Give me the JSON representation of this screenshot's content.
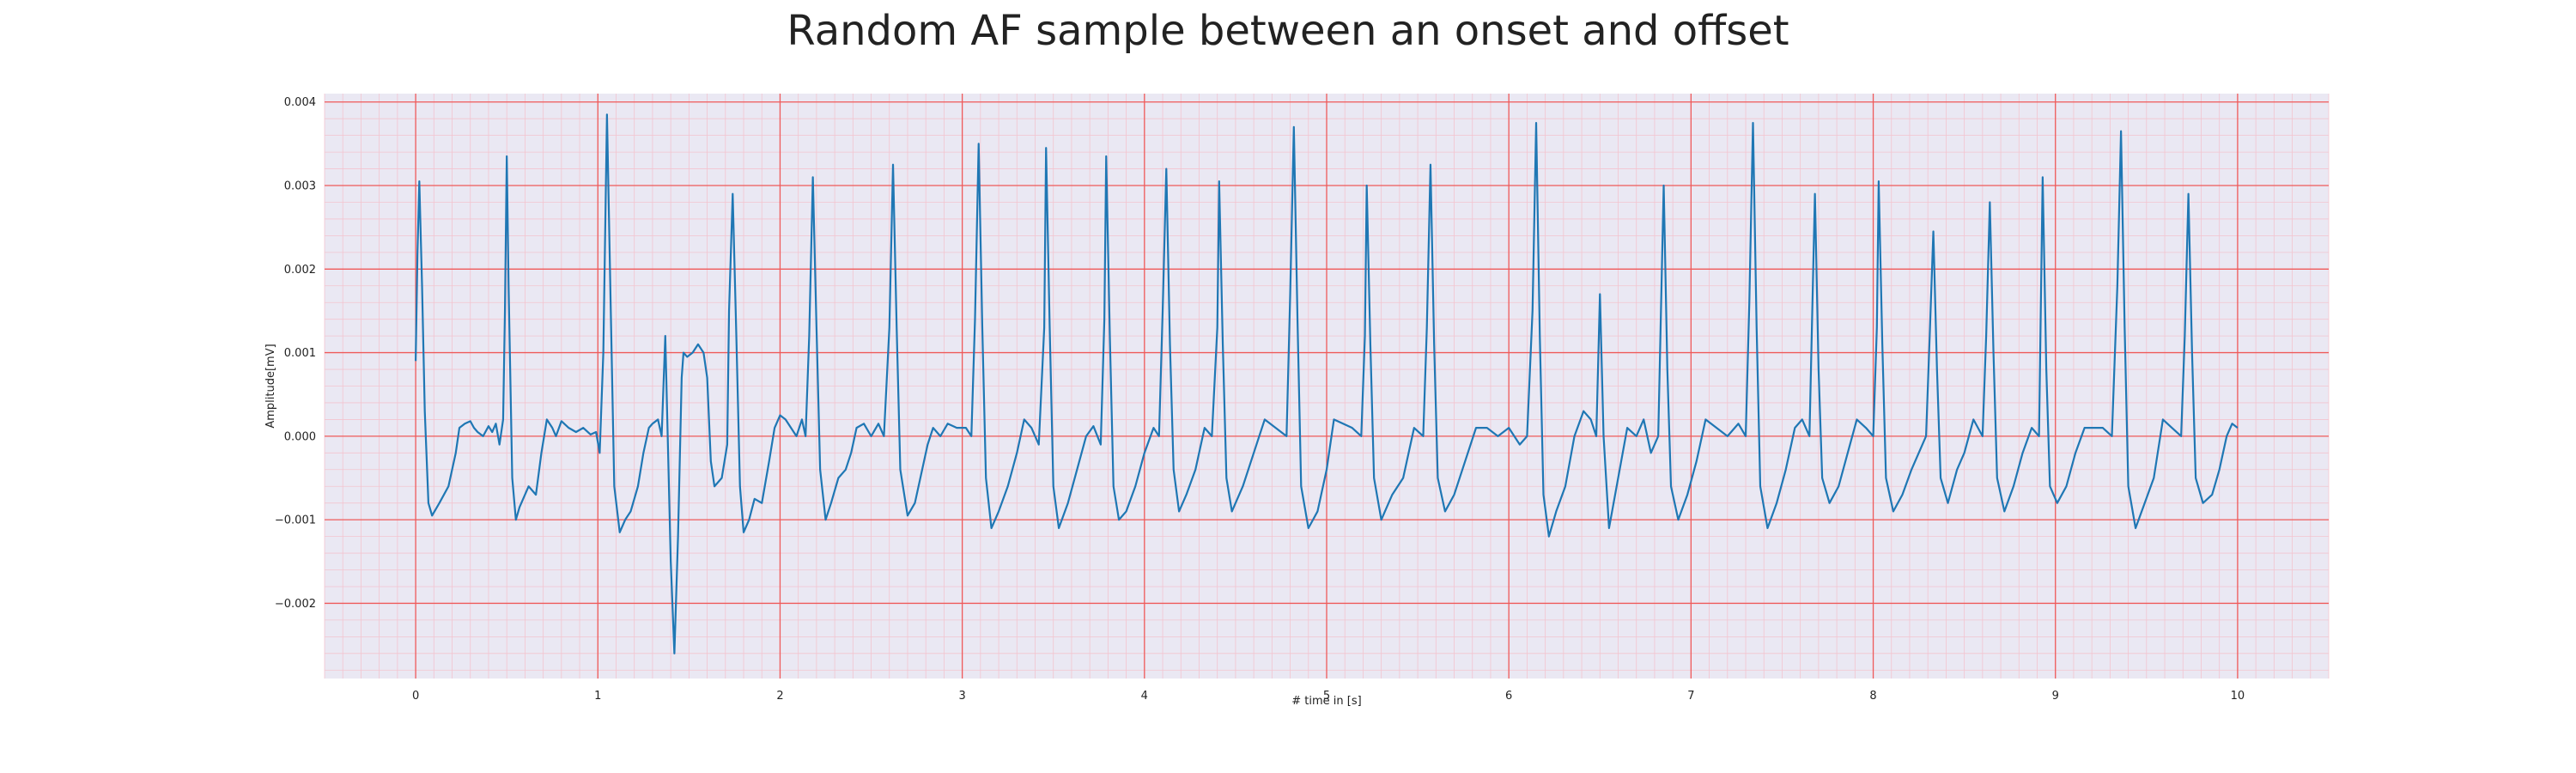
{
  "chart_data": {
    "type": "line",
    "title": "Random AF sample between an onset and offset",
    "xlabel": "# time in [s]",
    "ylabel": "Amplitude[mV]",
    "xlim": [
      -0.5,
      10.5
    ],
    "ylim": [
      -0.0029,
      0.0041
    ],
    "x_ticks": [
      0,
      1,
      2,
      3,
      4,
      5,
      6,
      7,
      8,
      9,
      10
    ],
    "x_tick_labels": [
      "0",
      "1",
      "2",
      "3",
      "4",
      "5",
      "6",
      "7",
      "8",
      "9",
      "10"
    ],
    "y_ticks": [
      -0.002,
      -0.001,
      0.0,
      0.001,
      0.002,
      0.003,
      0.004
    ],
    "y_tick_labels": [
      "−0.002",
      "−0.001",
      "0.000",
      "0.001",
      "0.002",
      "0.003",
      "0.004"
    ],
    "grid": true,
    "minor_grid": true,
    "background_color": "#eae8f3",
    "major_grid_color": "#ef5a5a",
    "minor_grid_color": "#f3c4cf",
    "series": [
      {
        "color": "#1f77b4",
        "points": [
          [
            0.0,
            0.0009
          ],
          [
            0.01,
            0.0022
          ],
          [
            0.02,
            0.00305
          ],
          [
            0.035,
            0.0018
          ],
          [
            0.05,
            0.0003
          ],
          [
            0.07,
            -0.0008
          ],
          [
            0.09,
            -0.00095
          ],
          [
            0.13,
            -0.0008
          ],
          [
            0.18,
            -0.0006
          ],
          [
            0.2,
            -0.0004
          ],
          [
            0.22,
            -0.0002
          ],
          [
            0.24,
            0.0001
          ],
          [
            0.27,
            0.00015
          ],
          [
            0.3,
            0.00018
          ],
          [
            0.32,
            0.0001
          ],
          [
            0.34,
            5e-05
          ],
          [
            0.37,
            0.0
          ],
          [
            0.4,
            0.00012
          ],
          [
            0.42,
            5e-05
          ],
          [
            0.44,
            0.00015
          ],
          [
            0.46,
            -0.0001
          ],
          [
            0.48,
            0.0002
          ],
          [
            0.49,
            0.0015
          ],
          [
            0.5,
            0.00335
          ],
          [
            0.51,
            0.0018
          ],
          [
            0.53,
            -0.0005
          ],
          [
            0.55,
            -0.001
          ],
          [
            0.57,
            -0.00085
          ],
          [
            0.62,
            -0.0006
          ],
          [
            0.66,
            -0.0007
          ],
          [
            0.69,
            -0.0002
          ],
          [
            0.72,
            0.0002
          ],
          [
            0.75,
            0.0001
          ],
          [
            0.77,
            0.0
          ],
          [
            0.8,
            0.00018
          ],
          [
            0.84,
            0.0001
          ],
          [
            0.88,
            5e-05
          ],
          [
            0.92,
            0.0001
          ],
          [
            0.96,
            2e-05
          ],
          [
            0.99,
            5e-05
          ],
          [
            1.01,
            -0.0002
          ],
          [
            1.03,
            0.001
          ],
          [
            1.05,
            0.00385
          ],
          [
            1.07,
            0.0016
          ],
          [
            1.09,
            -0.0006
          ],
          [
            1.12,
            -0.00115
          ],
          [
            1.15,
            -0.001
          ],
          [
            1.18,
            -0.0009
          ],
          [
            1.22,
            -0.0006
          ],
          [
            1.25,
            -0.0002
          ],
          [
            1.28,
            0.0001
          ],
          [
            1.3,
            0.00015
          ],
          [
            1.33,
            0.0002
          ],
          [
            1.35,
            0.0
          ],
          [
            1.37,
            0.0012
          ],
          [
            1.38,
            0.0003
          ],
          [
            1.4,
            -0.0015
          ],
          [
            1.42,
            -0.0026
          ],
          [
            1.44,
            -0.0012
          ],
          [
            1.46,
            0.0007
          ],
          [
            1.47,
            0.001
          ],
          [
            1.49,
            0.00095
          ],
          [
            1.52,
            0.001
          ],
          [
            1.55,
            0.0011
          ],
          [
            1.58,
            0.001
          ],
          [
            1.6,
            0.0007
          ],
          [
            1.62,
            -0.0003
          ],
          [
            1.64,
            -0.0006
          ],
          [
            1.68,
            -0.0005
          ],
          [
            1.71,
            -0.0001
          ],
          [
            1.72,
            0.0015
          ],
          [
            1.74,
            0.0029
          ],
          [
            1.76,
            0.0012
          ],
          [
            1.78,
            -0.0006
          ],
          [
            1.8,
            -0.00115
          ],
          [
            1.83,
            -0.001
          ],
          [
            1.86,
            -0.00075
          ],
          [
            1.9,
            -0.0008
          ],
          [
            1.94,
            -0.0003
          ],
          [
            1.97,
            0.0001
          ],
          [
            2.0,
            0.00025
          ],
          [
            2.03,
            0.0002
          ],
          [
            2.06,
            0.0001
          ],
          [
            2.09,
            0.0
          ],
          [
            2.12,
            0.0002
          ],
          [
            2.14,
            0.0
          ],
          [
            2.16,
            0.0012
          ],
          [
            2.18,
            0.0031
          ],
          [
            2.2,
            0.0013
          ],
          [
            2.22,
            -0.0004
          ],
          [
            2.25,
            -0.001
          ],
          [
            2.28,
            -0.0008
          ],
          [
            2.32,
            -0.0005
          ],
          [
            2.36,
            -0.0004
          ],
          [
            2.39,
            -0.0002
          ],
          [
            2.42,
            0.0001
          ],
          [
            2.46,
            0.00015
          ],
          [
            2.5,
            0.0
          ],
          [
            2.54,
            0.00015
          ],
          [
            2.57,
            0.0
          ],
          [
            2.6,
            0.0013
          ],
          [
            2.62,
            0.00325
          ],
          [
            2.64,
            0.0013
          ],
          [
            2.66,
            -0.0004
          ],
          [
            2.7,
            -0.00095
          ],
          [
            2.74,
            -0.0008
          ],
          [
            2.78,
            -0.0004
          ],
          [
            2.81,
            -0.0001
          ],
          [
            2.84,
            0.0001
          ],
          [
            2.88,
            0.0
          ],
          [
            2.92,
            0.00015
          ],
          [
            2.97,
            0.0001
          ],
          [
            3.02,
            0.0001
          ],
          [
            3.05,
            0.0
          ],
          [
            3.07,
            0.0014
          ],
          [
            3.09,
            0.0035
          ],
          [
            3.11,
            0.0013
          ],
          [
            3.13,
            -0.0005
          ],
          [
            3.16,
            -0.0011
          ],
          [
            3.2,
            -0.0009
          ],
          [
            3.25,
            -0.0006
          ],
          [
            3.3,
            -0.0002
          ],
          [
            3.34,
            0.0002
          ],
          [
            3.38,
            0.0001
          ],
          [
            3.42,
            -0.0001
          ],
          [
            3.45,
            0.0013
          ],
          [
            3.46,
            0.00345
          ],
          [
            3.48,
            0.0013
          ],
          [
            3.5,
            -0.0006
          ],
          [
            3.53,
            -0.0011
          ],
          [
            3.58,
            -0.0008
          ],
          [
            3.63,
            -0.0004
          ],
          [
            3.68,
            0.0
          ],
          [
            3.72,
            0.00012
          ],
          [
            3.76,
            -0.0001
          ],
          [
            3.78,
            0.0014
          ],
          [
            3.79,
            0.00335
          ],
          [
            3.81,
            0.0012
          ],
          [
            3.83,
            -0.0006
          ],
          [
            3.86,
            -0.001
          ],
          [
            3.9,
            -0.0009
          ],
          [
            3.95,
            -0.0006
          ],
          [
            4.0,
            -0.0002
          ],
          [
            4.05,
            0.0001
          ],
          [
            4.08,
            0.0
          ],
          [
            4.1,
            0.0015
          ],
          [
            4.12,
            0.0032
          ],
          [
            4.14,
            0.0011
          ],
          [
            4.16,
            -0.0004
          ],
          [
            4.19,
            -0.0009
          ],
          [
            4.23,
            -0.0007
          ],
          [
            4.28,
            -0.0004
          ],
          [
            4.33,
            0.0001
          ],
          [
            4.37,
            0.0
          ],
          [
            4.4,
            0.0013
          ],
          [
            4.41,
            0.00305
          ],
          [
            4.43,
            0.0011
          ],
          [
            4.45,
            -0.0005
          ],
          [
            4.48,
            -0.0009
          ],
          [
            4.54,
            -0.0006
          ],
          [
            4.6,
            -0.0002
          ],
          [
            4.66,
            0.0002
          ],
          [
            4.72,
            0.0001
          ],
          [
            4.78,
            0.0
          ],
          [
            4.8,
            0.0017
          ],
          [
            4.82,
            0.0037
          ],
          [
            4.84,
            0.0014
          ],
          [
            4.86,
            -0.0006
          ],
          [
            4.9,
            -0.0011
          ],
          [
            4.95,
            -0.0009
          ],
          [
            5.0,
            -0.0004
          ],
          [
            5.04,
            0.0002
          ],
          [
            5.09,
            0.00015
          ],
          [
            5.14,
            0.0001
          ],
          [
            5.19,
            0.0
          ],
          [
            5.21,
            0.0012
          ],
          [
            5.22,
            0.003
          ],
          [
            5.24,
            0.0011
          ],
          [
            5.26,
            -0.0005
          ],
          [
            5.3,
            -0.001
          ],
          [
            5.36,
            -0.0007
          ],
          [
            5.42,
            -0.0005
          ],
          [
            5.48,
            0.0001
          ],
          [
            5.53,
            0.0
          ],
          [
            5.55,
            0.0013
          ],
          [
            5.57,
            0.00325
          ],
          [
            5.59,
            0.0011
          ],
          [
            5.61,
            -0.0005
          ],
          [
            5.65,
            -0.0009
          ],
          [
            5.7,
            -0.0007
          ],
          [
            5.76,
            -0.0003
          ],
          [
            5.82,
            0.0001
          ],
          [
            5.88,
            0.0001
          ],
          [
            5.94,
            0.0
          ],
          [
            6.0,
            0.0001
          ],
          [
            6.06,
            -0.0001
          ],
          [
            6.1,
            0.0
          ],
          [
            6.13,
            0.0015
          ],
          [
            6.15,
            0.00375
          ],
          [
            6.17,
            0.0012
          ],
          [
            6.19,
            -0.0007
          ],
          [
            6.22,
            -0.0012
          ],
          [
            6.26,
            -0.0009
          ],
          [
            6.31,
            -0.0006
          ],
          [
            6.36,
            0.0
          ],
          [
            6.41,
            0.0003
          ],
          [
            6.45,
            0.0002
          ],
          [
            6.48,
            0.0
          ],
          [
            6.5,
            0.0017
          ],
          [
            6.52,
            0.0
          ],
          [
            6.55,
            -0.0011
          ],
          [
            6.6,
            -0.0005
          ],
          [
            6.65,
            0.0001
          ],
          [
            6.7,
            0.0
          ],
          [
            6.74,
            0.0002
          ],
          [
            6.78,
            -0.0002
          ],
          [
            6.82,
            0.0
          ],
          [
            6.85,
            0.003
          ],
          [
            6.87,
            0.0008
          ],
          [
            6.89,
            -0.0006
          ],
          [
            6.93,
            -0.001
          ],
          [
            6.98,
            -0.0007
          ],
          [
            7.03,
            -0.0003
          ],
          [
            7.08,
            0.0002
          ],
          [
            7.14,
            0.0001
          ],
          [
            7.2,
            0.0
          ],
          [
            7.26,
            0.00015
          ],
          [
            7.3,
            0.0
          ],
          [
            7.32,
            0.0016
          ],
          [
            7.34,
            0.00375
          ],
          [
            7.36,
            0.0013
          ],
          [
            7.38,
            -0.0006
          ],
          [
            7.42,
            -0.0011
          ],
          [
            7.47,
            -0.0008
          ],
          [
            7.52,
            -0.0004
          ],
          [
            7.57,
            0.0001
          ],
          [
            7.61,
            0.0002
          ],
          [
            7.65,
            0.0
          ],
          [
            7.68,
            0.0029
          ],
          [
            7.7,
            0.0008
          ],
          [
            7.72,
            -0.0005
          ],
          [
            7.76,
            -0.0008
          ],
          [
            7.81,
            -0.0006
          ],
          [
            7.86,
            -0.0002
          ],
          [
            7.91,
            0.0002
          ],
          [
            7.96,
            0.0001
          ],
          [
            8.0,
            0.0
          ],
          [
            8.02,
            0.0013
          ],
          [
            8.03,
            0.00305
          ],
          [
            8.05,
            0.0011
          ],
          [
            8.07,
            -0.0005
          ],
          [
            8.11,
            -0.0009
          ],
          [
            8.16,
            -0.0007
          ],
          [
            8.21,
            -0.0004
          ],
          [
            8.25,
            -0.0002
          ],
          [
            8.29,
            0.0
          ],
          [
            8.31,
            0.0012
          ],
          [
            8.33,
            0.00245
          ],
          [
            8.35,
            0.0008
          ],
          [
            8.37,
            -0.0005
          ],
          [
            8.41,
            -0.0008
          ],
          [
            8.46,
            -0.0004
          ],
          [
            8.5,
            -0.0002
          ],
          [
            8.55,
            0.0002
          ],
          [
            8.6,
            0.0
          ],
          [
            8.62,
            0.0012
          ],
          [
            8.64,
            0.0028
          ],
          [
            8.66,
            0.001
          ],
          [
            8.68,
            -0.0005
          ],
          [
            8.72,
            -0.0009
          ],
          [
            8.77,
            -0.0006
          ],
          [
            8.82,
            -0.0002
          ],
          [
            8.87,
            0.0001
          ],
          [
            8.91,
            0.0
          ],
          [
            8.93,
            0.0031
          ],
          [
            8.95,
            0.0008
          ],
          [
            8.97,
            -0.0006
          ],
          [
            9.01,
            -0.0008
          ],
          [
            9.06,
            -0.0006
          ],
          [
            9.11,
            -0.0002
          ],
          [
            9.16,
            0.0001
          ],
          [
            9.21,
            0.0001
          ],
          [
            9.26,
            0.0001
          ],
          [
            9.31,
            0.0
          ],
          [
            9.34,
            0.0018
          ],
          [
            9.36,
            0.00365
          ],
          [
            9.38,
            0.0013
          ],
          [
            9.4,
            -0.0006
          ],
          [
            9.44,
            -0.0011
          ],
          [
            9.49,
            -0.0008
          ],
          [
            9.54,
            -0.0005
          ],
          [
            9.59,
            0.0002
          ],
          [
            9.64,
            0.0001
          ],
          [
            9.69,
            0.0
          ],
          [
            9.71,
            0.0012
          ],
          [
            9.73,
            0.0029
          ],
          [
            9.75,
            0.001
          ],
          [
            9.77,
            -0.0005
          ],
          [
            9.81,
            -0.0008
          ],
          [
            9.86,
            -0.0007
          ],
          [
            9.9,
            -0.0004
          ],
          [
            9.94,
            0.0
          ],
          [
            9.97,
            0.00015
          ],
          [
            10.0,
            0.0001
          ]
        ]
      }
    ]
  }
}
